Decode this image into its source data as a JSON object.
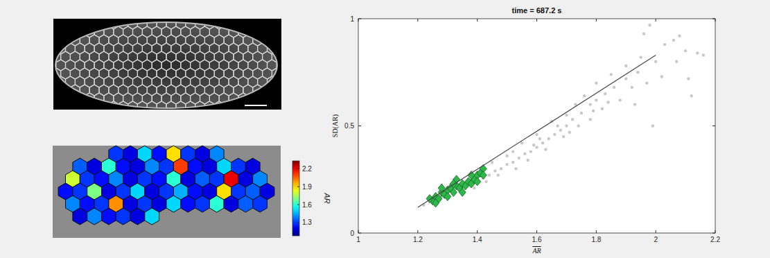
{
  "chart_data": {
    "type": "scatter",
    "title": "time = 687.2 s",
    "x_label": "AR",
    "y_label": "SD(AR)",
    "xlim": [
      1,
      2.2
    ],
    "xticks": [
      1,
      1.2,
      1.4,
      1.6,
      1.8,
      2,
      2.2
    ],
    "ylim": [
      0,
      1
    ],
    "yticks": [
      0,
      0.5,
      1
    ],
    "grid": false,
    "series": [
      {
        "type": "scatter",
        "color": "#c8c8c8",
        "marker": "circle",
        "x": [
          1.22,
          1.24,
          1.26,
          1.28,
          1.3,
          1.32,
          1.34,
          1.36,
          1.38,
          1.4,
          1.42,
          1.44,
          1.46,
          1.48,
          1.5,
          1.52,
          1.54,
          1.56,
          1.58,
          1.6,
          1.62,
          1.64,
          1.66,
          1.68,
          1.7,
          1.72,
          1.75,
          1.78,
          1.8,
          1.83,
          1.86,
          1.9,
          1.94,
          1.97,
          2.0,
          2.03,
          2.06,
          2.08,
          2.1,
          2.14,
          2.12,
          1.45,
          1.5,
          1.55,
          1.6,
          1.65,
          1.7,
          1.73,
          1.76,
          1.8,
          1.85,
          1.9,
          1.95,
          1.98,
          1.96,
          2.07,
          1.99,
          1.93,
          1.88,
          1.82,
          1.78,
          1.74,
          1.69,
          1.63,
          1.57,
          1.53,
          1.47,
          1.43,
          1.39,
          1.35,
          1.33,
          1.37,
          1.41,
          1.61,
          1.67,
          1.71,
          1.59,
          1.52,
          2.16,
          2.11,
          2.02,
          1.92,
          1.84,
          1.79
        ],
        "values": [
          0.13,
          0.15,
          0.14,
          0.17,
          0.18,
          0.19,
          0.2,
          0.22,
          0.23,
          0.25,
          0.26,
          0.27,
          0.29,
          0.3,
          0.32,
          0.33,
          0.35,
          0.37,
          0.38,
          0.4,
          0.42,
          0.44,
          0.46,
          0.48,
          0.5,
          0.53,
          0.56,
          0.6,
          0.62,
          0.65,
          0.68,
          0.72,
          0.75,
          0.7,
          0.8,
          0.88,
          0.9,
          0.92,
          0.85,
          0.84,
          0.64,
          0.33,
          0.36,
          0.42,
          0.46,
          0.52,
          0.55,
          0.6,
          0.64,
          0.7,
          0.74,
          0.78,
          0.82,
          0.97,
          0.93,
          0.8,
          0.5,
          0.6,
          0.62,
          0.58,
          0.53,
          0.5,
          0.45,
          0.39,
          0.34,
          0.3,
          0.27,
          0.24,
          0.21,
          0.19,
          0.22,
          0.25,
          0.28,
          0.44,
          0.5,
          0.47,
          0.41,
          0.38,
          0.83,
          0.72,
          0.73,
          0.68,
          0.61,
          0.57
        ]
      },
      {
        "type": "scatter",
        "color": "#2db84b",
        "marker": "diamond",
        "x": [
          1.25,
          1.26,
          1.27,
          1.28,
          1.29,
          1.3,
          1.31,
          1.32,
          1.33,
          1.34,
          1.35,
          1.36,
          1.37,
          1.38,
          1.39,
          1.4,
          1.41,
          1.42,
          1.26,
          1.3,
          1.35,
          1.4,
          1.33,
          1.28,
          1.38,
          1.24,
          1.32,
          1.42
        ],
        "values": [
          0.15,
          0.17,
          0.16,
          0.19,
          0.18,
          0.2,
          0.21,
          0.19,
          0.22,
          0.21,
          0.23,
          0.22,
          0.24,
          0.23,
          0.25,
          0.27,
          0.28,
          0.3,
          0.14,
          0.17,
          0.19,
          0.24,
          0.25,
          0.21,
          0.27,
          0.16,
          0.23,
          0.27
        ]
      },
      {
        "type": "line",
        "color": "#444444",
        "line_style": "solid",
        "x": [
          1.2,
          2.0
        ],
        "values": [
          0.12,
          0.83
        ]
      }
    ]
  },
  "segmentation": {
    "colorbar_label": "AR",
    "clim": [
      1.08,
      2.33
    ],
    "cticks": [
      1.3,
      1.6,
      1.9,
      2.2
    ],
    "ar": [
      1.3,
      1.2,
      1.5,
      1.25,
      1.9,
      1.3,
      1.2,
      1.4,
      1.35,
      1.2,
      1.6,
      1.25,
      1.2,
      1.4,
      1.3,
      2.1,
      1.25,
      1.2,
      1.5,
      1.3,
      1.2,
      1.8,
      1.3,
      1.25,
      1.4,
      1.2,
      1.3,
      1.25,
      1.6,
      1.2,
      1.35,
      1.3,
      2.2,
      1.2,
      1.4,
      1.25,
      1.3,
      1.7,
      1.2,
      1.3,
      1.5,
      1.2,
      1.3,
      1.45,
      1.25,
      1.2,
      1.9,
      1.3,
      1.35,
      1.2,
      1.4,
      1.25,
      1.3,
      2.0,
      1.2,
      1.3,
      1.2,
      1.5,
      1.25,
      1.3,
      1.6,
      1.2,
      1.35,
      1.3,
      1.2,
      1.4,
      1.25,
      1.3,
      1.2,
      1.5
    ]
  }
}
